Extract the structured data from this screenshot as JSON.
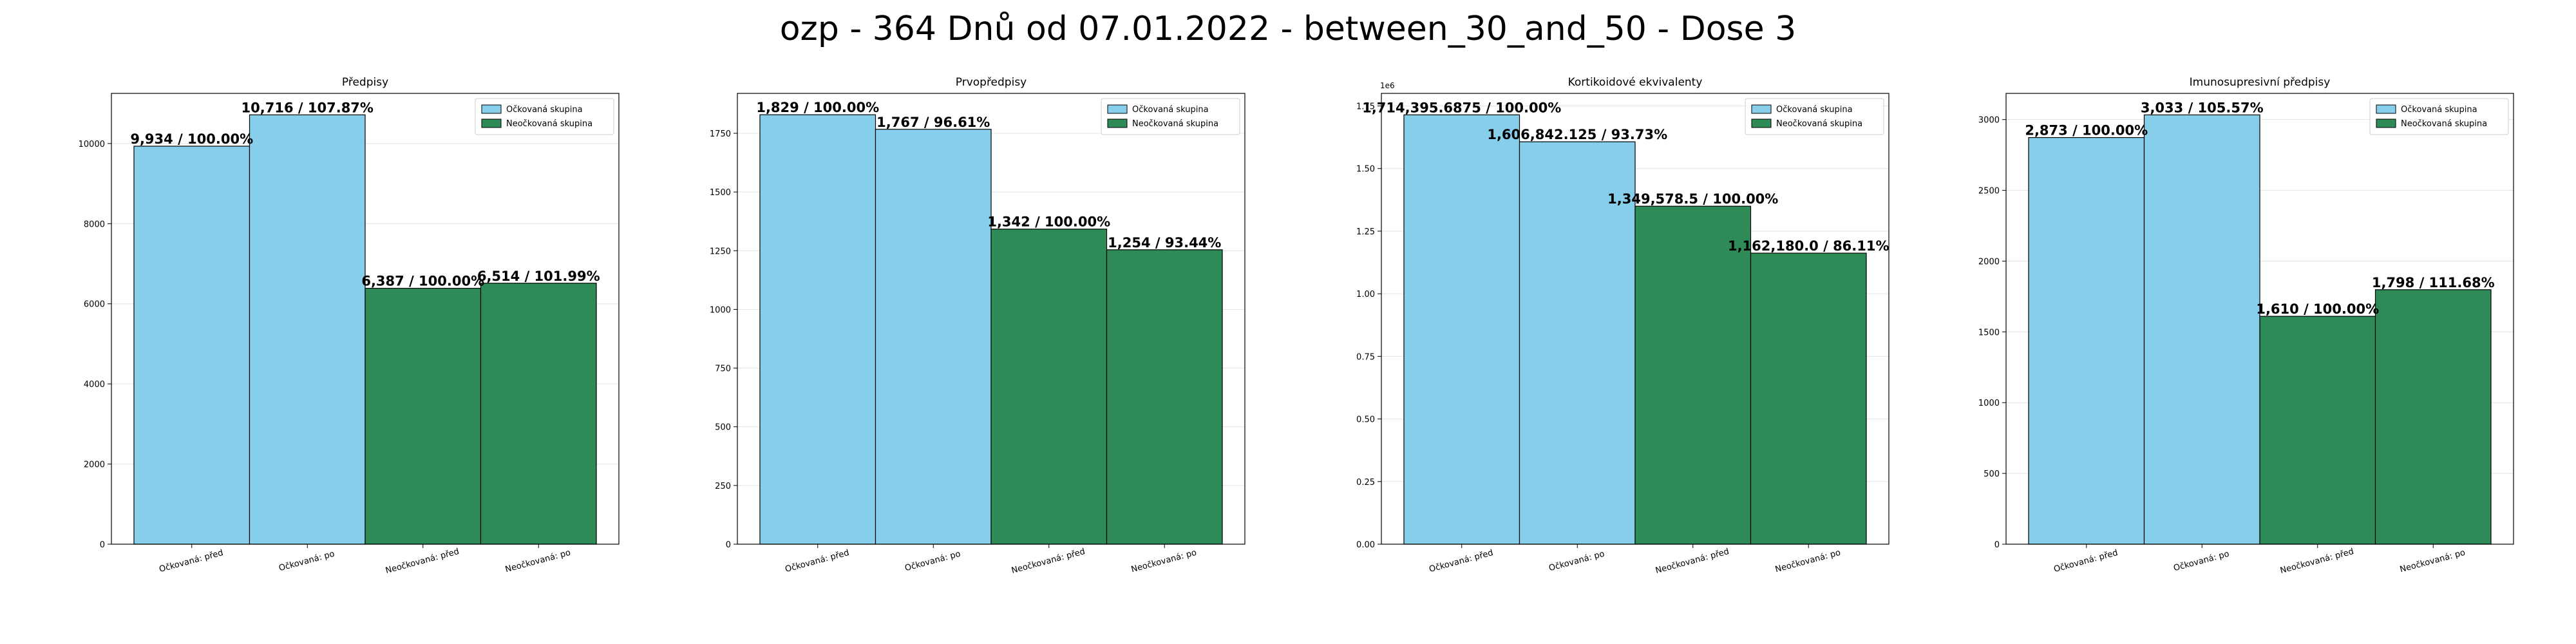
{
  "suptitle": "ozp - 364 Dnů od 07.01.2022 - between_30_and_50 - Dose 3",
  "colors": {
    "vaccinated": "#87CEEB",
    "unvaccinated": "#2E8B57"
  },
  "chart_data": [
    {
      "type": "bar",
      "title": "Předpisy",
      "categories": [
        "Očkovaná: před",
        "Očkovaná: po",
        "Neočkovaná: před",
        "Neočkovaná: po"
      ],
      "values": [
        9934,
        10716,
        6387,
        6514
      ],
      "data_labels": [
        "9,934 / 100.00%",
        "10,716 / 107.87%",
        "6,387 / 100.00%",
        "6,514 / 101.99%"
      ],
      "bar_groups": [
        "vaccinated",
        "vaccinated",
        "unvaccinated",
        "unvaccinated"
      ],
      "ylim": [
        0,
        11252
      ],
      "yticks": [
        0,
        2000,
        4000,
        6000,
        8000,
        10000
      ],
      "ytick_labels": [
        "0",
        "2000",
        "4000",
        "6000",
        "8000",
        "10000"
      ],
      "offset_label": "",
      "legend": [
        "Očkovaná skupina",
        "Neočkovaná skupina"
      ],
      "legend_position": "top-right",
      "grid": true
    },
    {
      "type": "bar",
      "title": "Prvopředpisy",
      "categories": [
        "Očkovaná: před",
        "Očkovaná: po",
        "Neočkovaná: před",
        "Neočkovaná: po"
      ],
      "values": [
        1829,
        1767,
        1342,
        1254
      ],
      "data_labels": [
        "1,829 / 100.00%",
        "1,767 / 96.61%",
        "1,342 / 100.00%",
        "1,254 / 93.44%"
      ],
      "bar_groups": [
        "vaccinated",
        "vaccinated",
        "unvaccinated",
        "unvaccinated"
      ],
      "ylim": [
        0,
        1920
      ],
      "yticks": [
        0,
        250,
        500,
        750,
        1000,
        1250,
        1500,
        1750
      ],
      "ytick_labels": [
        "0",
        "250",
        "500",
        "750",
        "1000",
        "1250",
        "1500",
        "1750"
      ],
      "offset_label": "",
      "legend": [
        "Očkovaná skupina",
        "Neočkovaná skupina"
      ],
      "legend_position": "top-right",
      "grid": true
    },
    {
      "type": "bar",
      "title": "Kortikoidové ekvivalenty",
      "categories": [
        "Očkovaná: před",
        "Očkovaná: po",
        "Neočkovaná: před",
        "Neočkovaná: po"
      ],
      "values": [
        1714395.6875,
        1606842.125,
        1349578.5,
        1162180.0
      ],
      "data_labels": [
        "1,714,395.6875 / 100.00%",
        "1,606,842.125 / 93.73%",
        "1,349,578.5 / 100.00%",
        "1,162,180.0 / 86.11%"
      ],
      "bar_groups": [
        "vaccinated",
        "vaccinated",
        "unvaccinated",
        "unvaccinated"
      ],
      "ylim": [
        0,
        1800115
      ],
      "yticks": [
        0,
        250000,
        500000,
        750000,
        1000000,
        1250000,
        1500000,
        1750000
      ],
      "ytick_labels": [
        "0.00",
        "0.25",
        "0.50",
        "0.75",
        "1.00",
        "1.25",
        "1.50",
        "1.75"
      ],
      "offset_label": "1e6",
      "legend": [
        "Očkovaná skupina",
        "Neočkovaná skupina"
      ],
      "legend_position": "top-right",
      "grid": true
    },
    {
      "type": "bar",
      "title": "Imunosupresivní předpisy",
      "categories": [
        "Očkovaná: před",
        "Očkovaná: po",
        "Neočkovaná: před",
        "Neočkovaná: po"
      ],
      "values": [
        2873,
        3033,
        1610,
        1798
      ],
      "data_labels": [
        "2,873 / 100.00%",
        "3,033 / 105.57%",
        "1,610 / 100.00%",
        "1,798 / 111.68%"
      ],
      "bar_groups": [
        "vaccinated",
        "vaccinated",
        "unvaccinated",
        "unvaccinated"
      ],
      "ylim": [
        0,
        3185
      ],
      "yticks": [
        0,
        500,
        1000,
        1500,
        2000,
        2500,
        3000
      ],
      "ytick_labels": [
        "0",
        "500",
        "1000",
        "1500",
        "2000",
        "2500",
        "3000"
      ],
      "offset_label": "",
      "legend": [
        "Očkovaná skupina",
        "Neočkovaná skupina"
      ],
      "legend_position": "top-right",
      "grid": true
    }
  ]
}
